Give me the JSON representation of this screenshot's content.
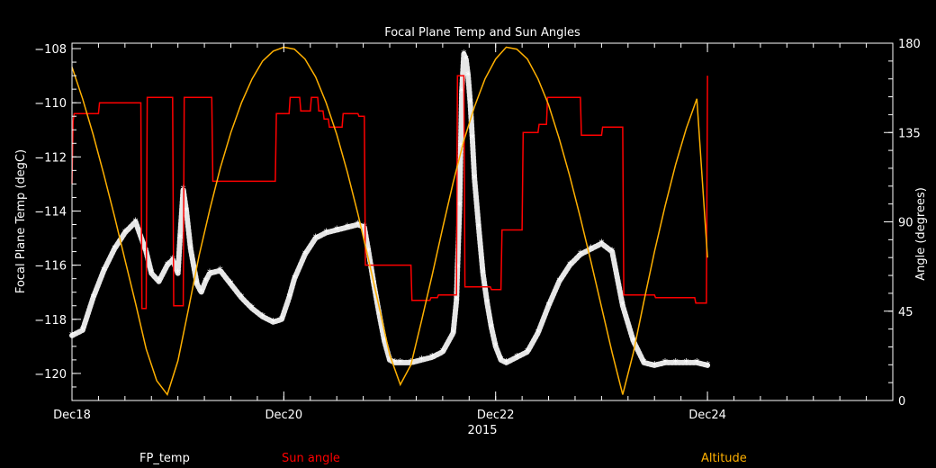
{
  "chart_data": {
    "type": "line",
    "title": "Focal Plane Temp and Sun Angles",
    "xlabel": "2015",
    "ylabel_left": "Focal Plane Temp (degC)",
    "ylabel_right": "Angle (degrees)",
    "xlim": [
      18.0,
      25.75
    ],
    "ylim_left": [
      -121.0,
      -107.8
    ],
    "ylim_right": [
      0,
      180
    ],
    "grid": false,
    "x_ticks": [
      {
        "value": 18,
        "label": "Dec18"
      },
      {
        "value": 20,
        "label": "Dec20"
      },
      {
        "value": 22,
        "label": "Dec22"
      },
      {
        "value": 24,
        "label": "Dec24"
      }
    ],
    "y_ticks_left": [
      {
        "value": -108,
        "label": "−108"
      },
      {
        "value": -110,
        "label": "−110"
      },
      {
        "value": -112,
        "label": "−112"
      },
      {
        "value": -114,
        "label": "−114"
      },
      {
        "value": -116,
        "label": "−116"
      },
      {
        "value": -118,
        "label": "−118"
      },
      {
        "value": -120,
        "label": "−120"
      }
    ],
    "y_ticks_right": [
      {
        "value": 0,
        "label": "0"
      },
      {
        "value": 45,
        "label": "45"
      },
      {
        "value": 90,
        "label": "90"
      },
      {
        "value": 135,
        "label": "135"
      },
      {
        "value": 180,
        "label": "180"
      }
    ],
    "series": [
      {
        "name": "FP_temp",
        "color": "#ffffff",
        "axis": "left",
        "style": "stars",
        "x": [
          18.0,
          18.1,
          18.2,
          18.3,
          18.4,
          18.5,
          18.6,
          18.7,
          18.75,
          18.82,
          18.9,
          18.95,
          19.0,
          19.02,
          19.05,
          19.08,
          19.12,
          19.18,
          19.22,
          19.26,
          19.3,
          19.4,
          19.5,
          19.6,
          19.7,
          19.8,
          19.9,
          19.98,
          20.05,
          20.1,
          20.2,
          20.3,
          20.4,
          20.5,
          20.6,
          20.7,
          20.76,
          20.8,
          20.85,
          20.9,
          20.95,
          21.0,
          21.05,
          21.1,
          21.2,
          21.3,
          21.4,
          21.5,
          21.6,
          21.63,
          21.64,
          21.66,
          21.67,
          21.68,
          21.7,
          21.72,
          21.74,
          21.76,
          21.78,
          21.8,
          21.84,
          21.88,
          21.92,
          21.96,
          22.0,
          22.05,
          22.1,
          22.2,
          22.3,
          22.4,
          22.5,
          22.6,
          22.7,
          22.8,
          22.9,
          23.0,
          23.1,
          23.2,
          23.3,
          23.4,
          23.5,
          23.6,
          23.7,
          23.8,
          23.9,
          24.0
        ],
        "values": [
          -118.6,
          -118.4,
          -117.2,
          -116.2,
          -115.4,
          -114.8,
          -114.4,
          -115.5,
          -116.3,
          -116.6,
          -116.0,
          -115.8,
          -116.3,
          -115.0,
          -113.2,
          -114.0,
          -115.4,
          -116.7,
          -117.0,
          -116.6,
          -116.3,
          -116.2,
          -116.7,
          -117.2,
          -117.6,
          -117.9,
          -118.1,
          -118.0,
          -117.2,
          -116.5,
          -115.6,
          -115.0,
          -114.8,
          -114.7,
          -114.6,
          -114.5,
          -114.6,
          -115.5,
          -116.7,
          -117.8,
          -118.8,
          -119.5,
          -119.6,
          -119.6,
          -119.6,
          -119.5,
          -119.4,
          -119.2,
          -118.5,
          -117.3,
          -116.1,
          -113.8,
          -111.6,
          -109.6,
          -108.2,
          -108.4,
          -109.0,
          -110.0,
          -111.3,
          -112.8,
          -114.6,
          -116.3,
          -117.4,
          -118.3,
          -119.0,
          -119.5,
          -119.6,
          -119.4,
          -119.2,
          -118.5,
          -117.5,
          -116.6,
          -116.0,
          -115.6,
          -115.4,
          -115.2,
          -115.5,
          -117.5,
          -118.8,
          -119.6,
          -119.7,
          -119.6,
          -119.6,
          -119.6,
          -119.6,
          -119.7
        ]
      },
      {
        "name": "Sun angle",
        "color": "#ff0000",
        "axis": "left",
        "style": "step",
        "x": [
          18.0,
          18.01,
          18.02,
          18.25,
          18.26,
          18.65,
          18.66,
          18.7,
          18.71,
          18.95,
          18.96,
          19.05,
          19.06,
          19.32,
          19.33,
          19.92,
          19.93,
          20.05,
          20.06,
          20.15,
          20.16,
          20.25,
          20.26,
          20.32,
          20.33,
          20.37,
          20.38,
          20.42,
          20.43,
          20.55,
          20.56,
          20.7,
          20.71,
          20.76,
          20.77,
          21.2,
          21.21,
          21.38,
          21.39,
          21.45,
          21.46,
          21.63,
          21.64,
          21.7,
          21.71,
          21.95,
          21.96,
          22.05,
          22.06,
          22.25,
          22.26,
          22.4,
          22.41,
          22.48,
          22.49,
          22.8,
          22.81,
          23.0,
          23.01,
          23.2,
          23.21,
          23.5,
          23.51,
          23.88,
          23.89,
          23.99,
          24.0
        ],
        "values": [
          -113.0,
          -110.7,
          -110.4,
          -110.4,
          -110.0,
          -110.0,
          -117.6,
          -117.6,
          -109.8,
          -109.8,
          -117.5,
          -117.5,
          -109.8,
          -109.8,
          -112.9,
          -112.9,
          -110.4,
          -110.4,
          -109.8,
          -109.8,
          -110.3,
          -110.3,
          -109.8,
          -109.8,
          -110.3,
          -110.3,
          -110.6,
          -110.6,
          -110.9,
          -110.9,
          -110.4,
          -110.4,
          -110.5,
          -110.5,
          -116.0,
          -116.0,
          -117.3,
          -117.3,
          -117.2,
          -117.2,
          -117.1,
          -117.1,
          -109.0,
          -109.0,
          -116.8,
          -116.8,
          -116.9,
          -116.9,
          -114.7,
          -114.7,
          -111.1,
          -111.1,
          -110.8,
          -110.8,
          -109.8,
          -109.8,
          -111.2,
          -111.2,
          -110.9,
          -110.9,
          -117.1,
          -117.1,
          -117.2,
          -117.2,
          -117.4,
          -117.4,
          -109.0
        ]
      },
      {
        "name": "Altitude",
        "color": "#ffb000",
        "axis": "right",
        "style": "line",
        "x": [
          18.0,
          18.1,
          18.2,
          18.3,
          18.4,
          18.5,
          18.6,
          18.7,
          18.8,
          18.9,
          19.0,
          19.1,
          19.2,
          19.3,
          19.4,
          19.5,
          19.6,
          19.7,
          19.8,
          19.9,
          20.0,
          20.1,
          20.2,
          20.3,
          20.4,
          20.5,
          20.6,
          20.7,
          20.8,
          20.9,
          21.0,
          21.1,
          21.2,
          21.3,
          21.4,
          21.5,
          21.6,
          21.7,
          21.8,
          21.9,
          22.0,
          22.1,
          22.2,
          22.3,
          22.4,
          22.5,
          22.6,
          22.7,
          22.8,
          22.9,
          23.0,
          23.1,
          23.2,
          23.3,
          23.4,
          23.5,
          23.6,
          23.7,
          23.8,
          23.9,
          24.0
        ],
        "values": [
          168,
          152,
          134,
          114,
          93,
          71,
          49,
          26,
          10,
          3,
          20,
          46,
          73,
          96,
          117,
          135,
          150,
          162,
          171,
          176,
          178,
          177,
          172,
          163,
          150,
          134,
          115,
          94,
          71,
          47,
          23,
          8,
          18,
          40,
          63,
          87,
          110,
          131,
          148,
          162,
          172,
          178,
          177,
          172,
          162,
          149,
          132,
          113,
          92,
          70,
          47,
          24,
          3,
          24,
          50,
          75,
          98,
          119,
          137,
          152,
          72
        ]
      }
    ]
  }
}
